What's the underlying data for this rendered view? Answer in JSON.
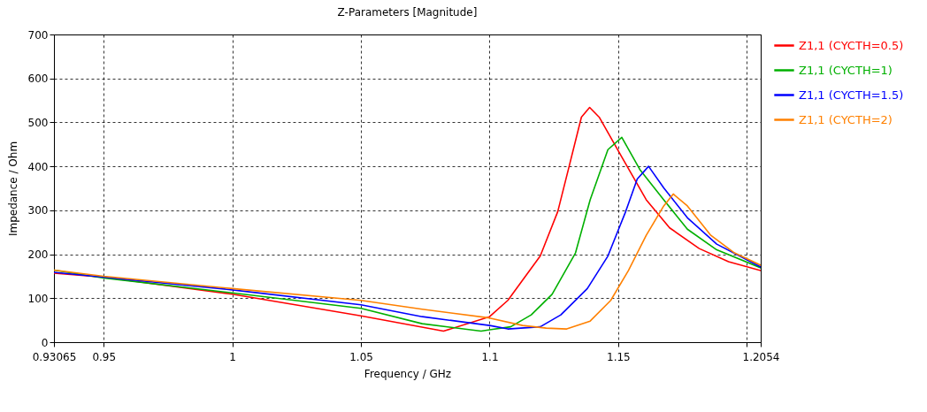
{
  "chart_data": {
    "type": "line",
    "title": "Z-Parameters [Magnitude]",
    "xlabel": "Frequency / GHz",
    "ylabel": "Impedance / Ohm",
    "xlim": [
      0.93065,
      1.2054
    ],
    "xticks": [
      0.93065,
      0.95,
      1,
      1.05,
      1.1,
      1.15,
      {
        "value": 1.2,
        "label": null
      },
      1.2054
    ],
    "ylim": [
      0,
      700
    ],
    "yticks": [
      0,
      100,
      200,
      300,
      400,
      500,
      600,
      700
    ],
    "grid": true,
    "legend": "top right",
    "line_style": "solid",
    "marker": "none",
    "series": [
      {
        "name": "Z1,1 (CYCTH=0.5)",
        "color": "#ff0000",
        "x": [
          0.93065,
          0.95,
          1,
          1.05,
          1.0821,
          1.1,
          1.1071,
          1.1197,
          1.1265,
          1.1311,
          1.1357,
          1.1389,
          1.1426,
          1.1517,
          1.1609,
          1.17,
          1.1815,
          1.1929,
          1.2054
        ],
        "values": [
          157,
          148,
          109,
          60,
          25,
          58,
          95,
          196,
          297,
          404,
          512,
          534,
          512,
          418,
          324,
          260,
          213,
          183,
          163
        ]
      },
      {
        "name": "Z1,1 (CYCTH=1)",
        "color": "#00b000",
        "x": [
          0.93065,
          0.95,
          1,
          1.05,
          1.0738,
          1.0967,
          1.1,
          1.1082,
          1.1162,
          1.1243,
          1.1334,
          1.1391,
          1.146,
          1.1514,
          1.1586,
          1.1677,
          1.1769,
          1.1883,
          1.2054
        ],
        "values": [
          164,
          146,
          112,
          77,
          42,
          25,
          28,
          35,
          62,
          109,
          203,
          324,
          438,
          466,
          391,
          324,
          257,
          210,
          169
        ]
      },
      {
        "name": "Z1,1 (CYCTH=1.5)",
        "color": "#0000ff",
        "x": [
          0.93065,
          0.95,
          1,
          1.05,
          1.0738,
          1.1,
          1.1071,
          1.1197,
          1.1277,
          1.138,
          1.146,
          1.1529,
          1.1574,
          1.1618,
          1.1677,
          1.1769,
          1.1883,
          1.2054
        ],
        "values": [
          159,
          148,
          119,
          85,
          58,
          38,
          30,
          35,
          62,
          122,
          196,
          297,
          371,
          400,
          351,
          283,
          223,
          171
        ]
      },
      {
        "name": "Z1,1 (CYCTH=2)",
        "color": "#ff8000",
        "x": [
          0.93065,
          0.95,
          1,
          1.05,
          1.0738,
          1.1,
          1.1128,
          1.122,
          1.13,
          1.1391,
          1.1471,
          1.154,
          1.1609,
          1.1677,
          1.1714,
          1.1769,
          1.186,
          1.1952,
          1.2054
        ],
        "values": [
          164,
          150,
          122,
          95,
          75,
          55,
          38,
          32,
          30,
          48,
          95,
          163,
          243,
          310,
          337,
          310,
          243,
          203,
          175
        ]
      }
    ]
  }
}
